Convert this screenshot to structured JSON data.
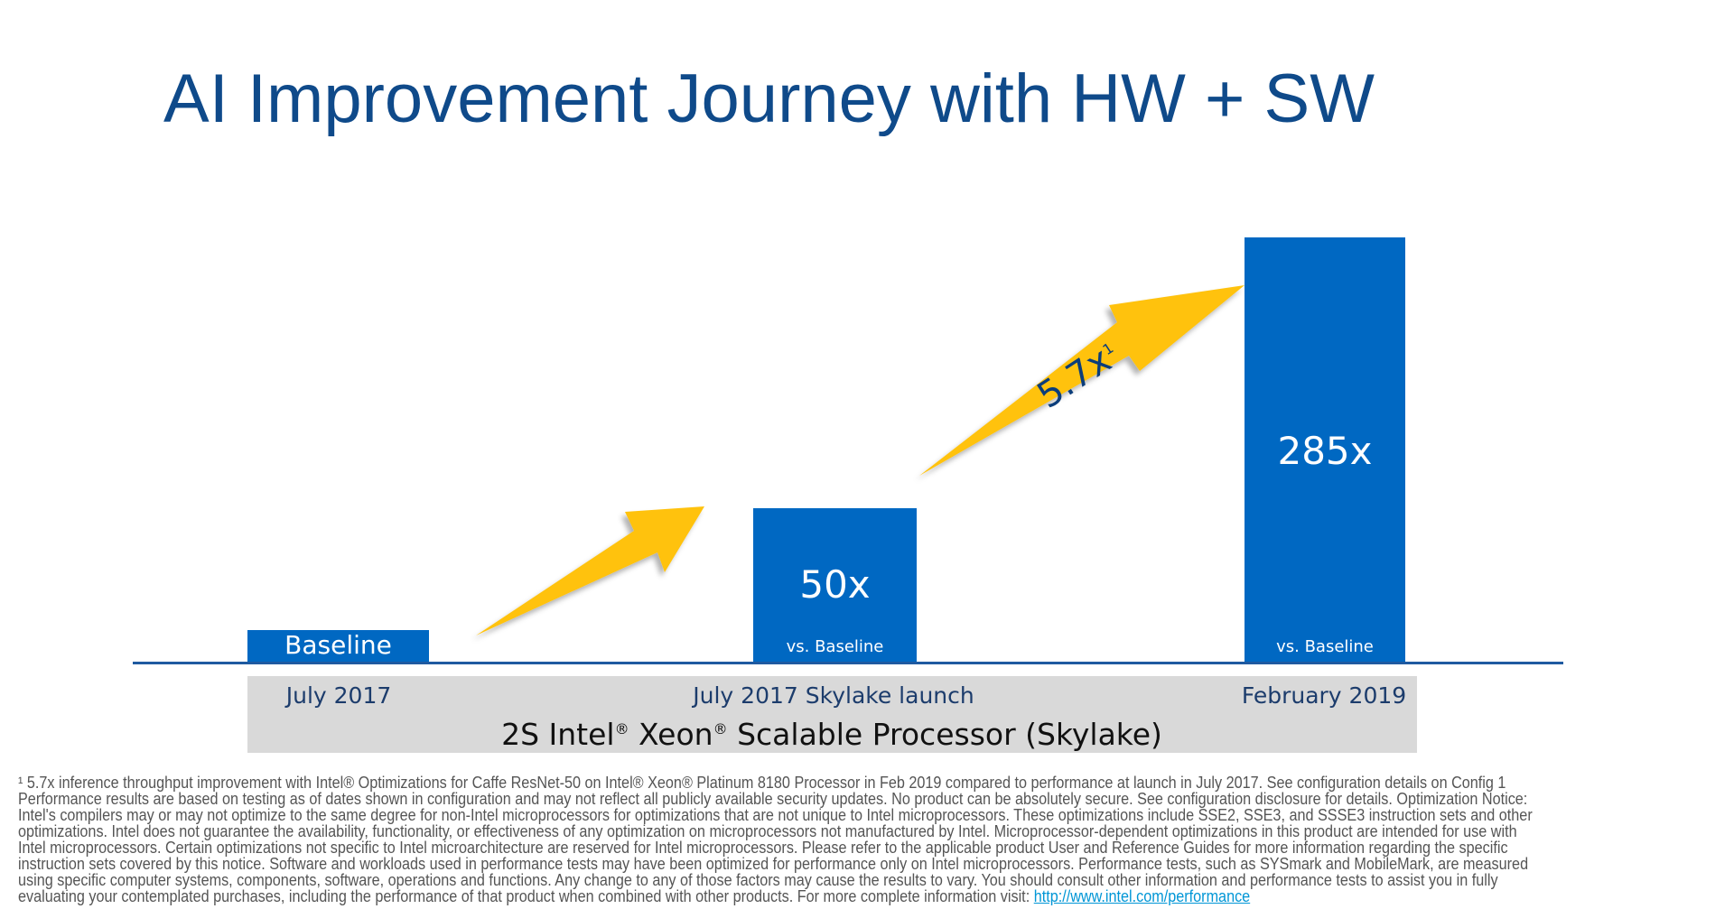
{
  "title": "AI Improvement Journey with HW + SW",
  "chart_data": {
    "type": "bar",
    "title": "AI Improvement Journey with HW + SW",
    "categories": [
      "July 2017",
      "July 2017 Skylake launch",
      "February 2019"
    ],
    "values": [
      1,
      50,
      285
    ],
    "bar_labels": [
      "Baseline",
      "50x",
      "285x"
    ],
    "bar_sublabels": [
      "",
      "vs. Baseline",
      "vs. Baseline"
    ],
    "xlabel": "2S Intel® Xeon® Scalable Processor (Skylake)",
    "ylabel": "",
    "annotation": {
      "text": "5.7x",
      "footnote_mark": "1"
    },
    "colors": {
      "bar": "#0068c2",
      "arrow": "#ffc20e",
      "title": "#0f4a8a"
    }
  },
  "xaxis": {
    "prefix": "2S Intel",
    "reg": "®",
    "mid": " Xeon",
    "suffix": " Scalable Processor (Skylake)"
  },
  "footnote": {
    "lines": [
      "¹ 5.7x inference throughput improvement with Intel® Optimizations for Caffe ResNet-50 on Intel® Xeon® Platinum 8180 Processor in Feb 2019 compared to performance at launch in July 2017. See configuration details on Config 1",
      "Performance results are based on testing as of dates shown in configuration and may not reflect all publicly available security updates. No product can be absolutely secure. See configuration disclosure for details. Optimization Notice:",
      "Intel's compilers may or may not optimize to the same degree for non-Intel microprocessors for optimizations that are not unique to Intel microprocessors. These optimizations include SSE2, SSE3, and SSSE3 instruction sets and other",
      "optimizations. Intel does not guarantee the availability, functionality, or effectiveness of any optimization on microprocessors not manufactured by Intel. Microprocessor-dependent optimizations in this product are intended for use with",
      "Intel microprocessors. Certain optimizations not specific to Intel microarchitecture are reserved for Intel microprocessors. Please refer to the applicable product User and Reference Guides for more information regarding the specific",
      "instruction sets covered by this notice. Software and workloads used in performance tests may have been optimized for performance only on Intel microprocessors.  Performance tests, such as SYSmark and MobileMark, are measured",
      "using specific computer systems, components, software, operations and functions.  Any change to any of those factors may cause the results to vary.  You should consult other information and performance tests to assist you in fully",
      "evaluating your contemplated purchases, including the performance of that product when combined with other products. For more complete information visit: "
    ],
    "link": "http://www.intel.com/performance"
  }
}
